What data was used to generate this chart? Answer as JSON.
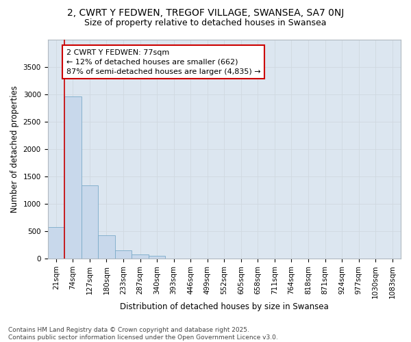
{
  "title_line1": "2, CWRT Y FEDWEN, TREGOF VILLAGE, SWANSEA, SA7 0NJ",
  "title_line2": "Size of property relative to detached houses in Swansea",
  "xlabel": "Distribution of detached houses by size in Swansea",
  "ylabel": "Number of detached properties",
  "bar_values": [
    580,
    2960,
    1340,
    430,
    155,
    75,
    45,
    0,
    0,
    0,
    0,
    0,
    0,
    0,
    0,
    0,
    0,
    0,
    0,
    0
  ],
  "bin_labels": [
    "21sqm",
    "74sqm",
    "127sqm",
    "180sqm",
    "233sqm",
    "287sqm",
    "340sqm",
    "393sqm",
    "446sqm",
    "499sqm",
    "552sqm",
    "605sqm",
    "658sqm",
    "711sqm",
    "764sqm",
    "818sqm",
    "871sqm",
    "924sqm",
    "977sqm",
    "1030sqm",
    "1083sqm"
  ],
  "bar_color": "#c8d8eb",
  "bar_edge_color": "#7aaac8",
  "grid_color": "#d0d8e0",
  "bg_color": "#dce6f0",
  "annotation_text": "2 CWRT Y FEDWEN: 77sqm\n← 12% of detached houses are smaller (662)\n87% of semi-detached houses are larger (4,835) →",
  "annotation_box_color": "#ffffff",
  "annotation_border_color": "#cc0000",
  "vline_color": "#cc0000",
  "ylim": [
    0,
    4000
  ],
  "yticks": [
    0,
    500,
    1000,
    1500,
    2000,
    2500,
    3000,
    3500
  ],
  "footer_text": "Contains HM Land Registry data © Crown copyright and database right 2025.\nContains public sector information licensed under the Open Government Licence v3.0.",
  "title_fontsize": 10,
  "subtitle_fontsize": 9,
  "axis_label_fontsize": 8.5,
  "tick_fontsize": 7.5,
  "annotation_fontsize": 8,
  "footer_fontsize": 6.5
}
